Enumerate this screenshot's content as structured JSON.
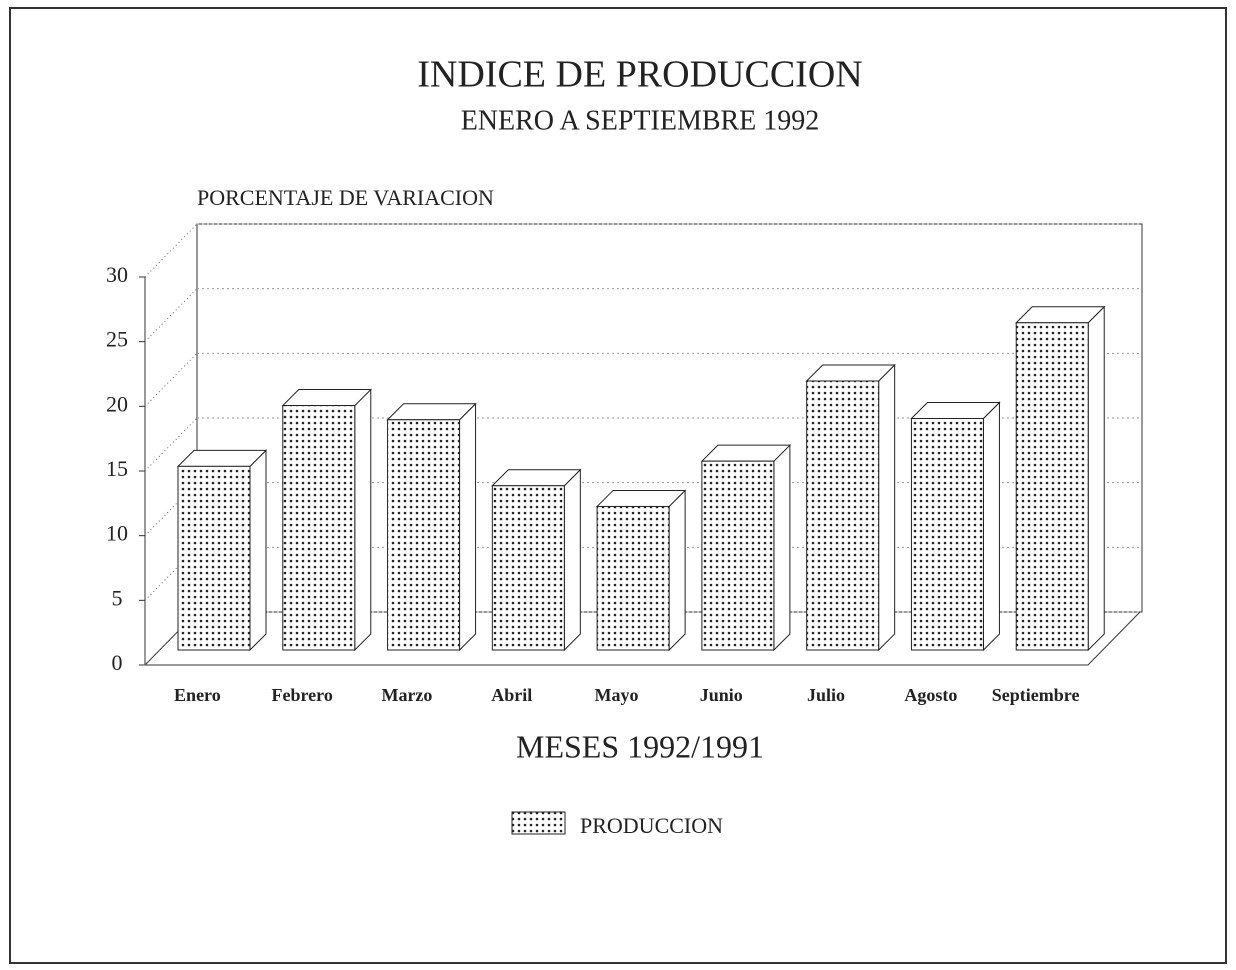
{
  "chart_data": {
    "type": "bar3d",
    "title": "INDICE DE PRODUCCION",
    "subtitle": "ENERO A SEPTIEMBRE 1992",
    "y_label": "PORCENTAJE DE VARIACION",
    "x_label": "MESES 1992/1991",
    "categories": [
      "Enero",
      "Febrero",
      "Marzo",
      "Abril",
      "Mayo",
      "Junio",
      "Julio",
      "Agosto",
      "Septiembre"
    ],
    "series": [
      {
        "name": "PRODUCCION",
        "color": "#222222",
        "values": [
          14.2,
          18.9,
          17.8,
          12.7,
          11.1,
          14.6,
          20.8,
          17.9,
          25.3
        ]
      }
    ],
    "ylim": [
      0,
      30
    ],
    "yticks": [
      0,
      5,
      10,
      15,
      20,
      25,
      30
    ],
    "grid": true,
    "legend": "bottom"
  }
}
